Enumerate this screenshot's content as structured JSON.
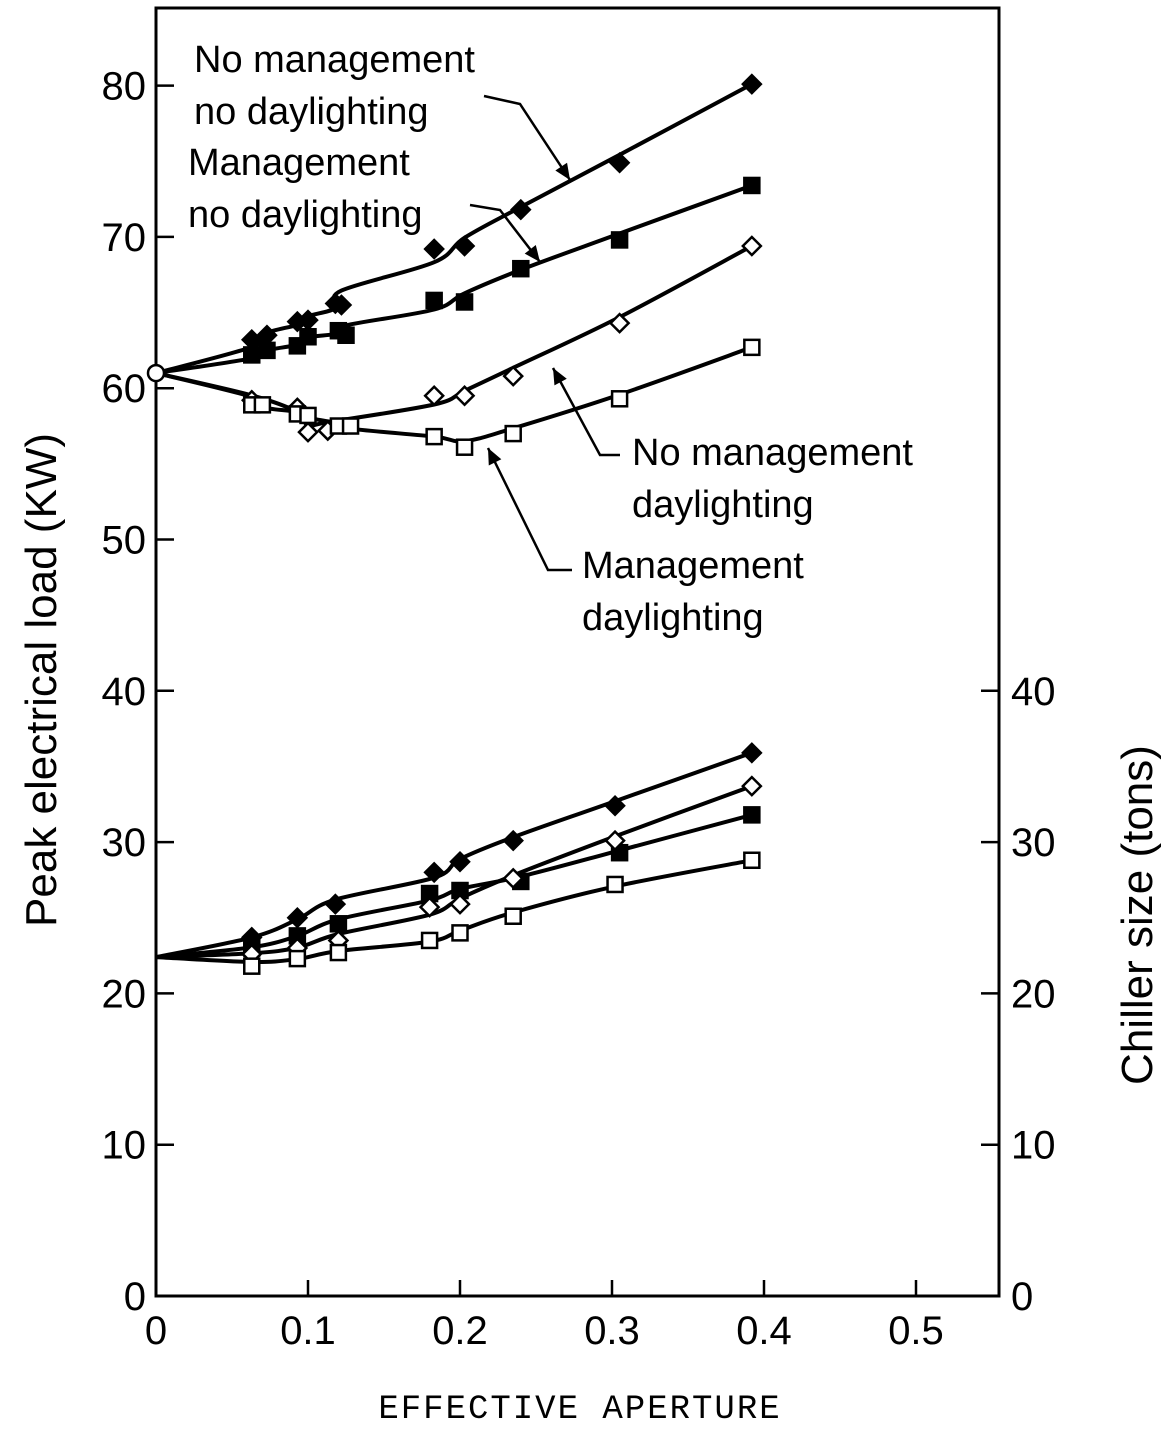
{
  "chart_data": {
    "type": "line",
    "xlabel": "EFFECTIVE APERTURE",
    "ylabel": "Peak electrical load (KW)",
    "y2label": "Chiller size (tons)",
    "xlim": [
      0,
      0.55
    ],
    "ylim": [
      0,
      85
    ],
    "x_ticks": [
      0,
      0.1,
      0.2,
      0.3,
      0.4,
      0.5
    ],
    "x_tick_labels": [
      "0",
      "0.1",
      "0.2",
      "0.3",
      "0.4",
      "0.5"
    ],
    "y_ticks": [
      0,
      10,
      20,
      30,
      40,
      50,
      60,
      70,
      80
    ],
    "y_tick_labels": [
      "0",
      "10",
      "20",
      "30",
      "40",
      "50",
      "60",
      "70",
      "80"
    ],
    "y2_ticks": [
      0,
      10,
      20,
      30,
      40
    ],
    "y2_tick_labels": [
      "0",
      "10",
      "20",
      "30",
      "40"
    ],
    "grid": false,
    "annotations": [
      {
        "lines": [
          "No management",
          "no daylighting"
        ]
      },
      {
        "lines": [
          "Management",
          "no daylighting"
        ]
      },
      {
        "lines": [
          "No management",
          "daylighting"
        ]
      },
      {
        "lines": [
          "Management",
          "daylighting"
        ]
      }
    ],
    "series": [
      {
        "group": "electrical",
        "marker": "diamond-filled",
        "x": [
          0,
          0.063,
          0.073,
          0.093,
          0.1,
          0.118,
          0.122,
          0.183,
          0.203,
          0.24,
          0.305,
          0.392
        ],
        "y": [
          61,
          63.2,
          63.5,
          64.4,
          64.5,
          65.6,
          65.5,
          69.2,
          69.4,
          71.8,
          74.9,
          80.1
        ]
      },
      {
        "group": "electrical",
        "marker": "square-filled",
        "x": [
          0,
          0.063,
          0.073,
          0.093,
          0.1,
          0.12,
          0.125,
          0.183,
          0.203,
          0.24,
          0.305,
          0.392
        ],
        "y": [
          61,
          62.2,
          62.5,
          62.8,
          63.4,
          63.8,
          63.5,
          65.8,
          65.7,
          67.9,
          69.8,
          73.4
        ]
      },
      {
        "group": "electrical",
        "marker": "diamond-open",
        "x": [
          0,
          0.063,
          0.093,
          0.1,
          0.113,
          0.183,
          0.203,
          0.235,
          0.305,
          0.392
        ],
        "y": [
          61,
          59.2,
          58.7,
          57.1,
          57.2,
          59.5,
          59.5,
          60.8,
          64.3,
          69.4
        ]
      },
      {
        "group": "electrical",
        "marker": "square-open",
        "x": [
          0,
          0.063,
          0.07,
          0.093,
          0.1,
          0.12,
          0.128,
          0.183,
          0.203,
          0.235,
          0.305,
          0.392
        ],
        "y": [
          61,
          58.9,
          58.9,
          58.3,
          58.2,
          57.5,
          57.5,
          56.8,
          56.1,
          57.0,
          59.3,
          62.7
        ]
      },
      {
        "group": "chiller",
        "marker": "diamond-filled",
        "x": [
          0,
          0.063,
          0.093,
          0.118,
          0.183,
          0.2,
          0.235,
          0.302,
          0.392
        ],
        "y": [
          22.4,
          23.7,
          25.0,
          25.9,
          28.0,
          28.7,
          30.1,
          32.4,
          35.9
        ]
      },
      {
        "group": "chiller",
        "marker": "square-filled",
        "x": [
          0,
          0.063,
          0.093,
          0.12,
          0.18,
          0.2,
          0.24,
          0.305,
          0.392
        ],
        "y": [
          22.4,
          23.0,
          23.8,
          24.6,
          26.6,
          26.8,
          27.4,
          29.3,
          31.8
        ]
      },
      {
        "group": "chiller",
        "marker": "diamond-open",
        "x": [
          0,
          0.063,
          0.093,
          0.12,
          0.18,
          0.2,
          0.235,
          0.302,
          0.392
        ],
        "y": [
          22.4,
          22.6,
          23.0,
          23.5,
          25.7,
          25.9,
          27.6,
          30.1,
          33.7
        ]
      },
      {
        "group": "chiller",
        "marker": "square-open",
        "x": [
          0,
          0.063,
          0.093,
          0.12,
          0.18,
          0.2,
          0.235,
          0.302,
          0.392
        ],
        "y": [
          22.4,
          21.8,
          22.3,
          22.7,
          23.5,
          24.0,
          25.1,
          27.2,
          28.8
        ]
      }
    ]
  }
}
